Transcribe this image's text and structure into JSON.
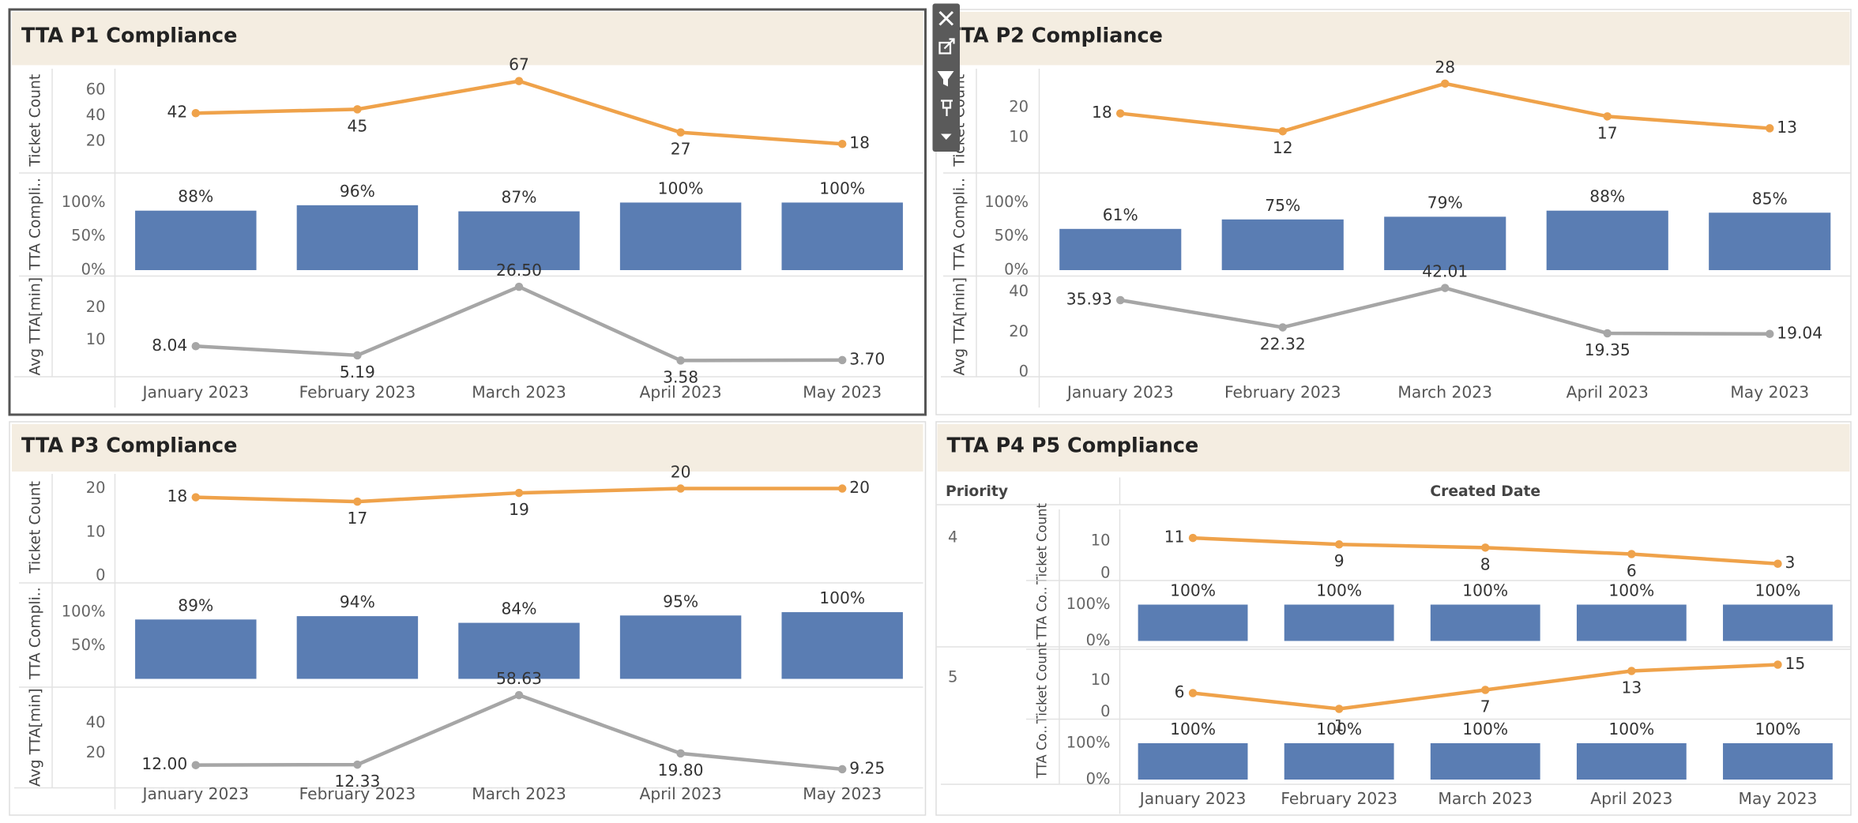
{
  "chart_data": [
    {
      "type": "combo",
      "title": "TTA P1 Compliance",
      "categories": [
        "January 2023",
        "February 2023",
        "March 2023",
        "April 2023",
        "May 2023"
      ],
      "panes": [
        {
          "type": "line",
          "y_label": "Ticket Count",
          "color": "#efa24a",
          "values": [
            42,
            45,
            67,
            27,
            18
          ],
          "ylim": [
            0,
            72
          ],
          "yticks": [
            20,
            40,
            60
          ]
        },
        {
          "type": "bar",
          "y_label": "TTA Compli..",
          "color": "#5a7db3",
          "values": [
            88,
            96,
            87,
            100,
            100
          ],
          "value_labels": [
            "88%",
            "96%",
            "87%",
            "100%",
            "100%"
          ],
          "ylim": [
            0,
            135
          ],
          "yticks": [
            {
              "value": 0,
              "label": "0%"
            },
            {
              "value": 50,
              "label": "50%"
            },
            {
              "value": 100,
              "label": "100%"
            }
          ]
        },
        {
          "type": "line",
          "y_label": "Avg TTA[min]",
          "color": "#a6a6a6",
          "values": [
            8.04,
            5.19,
            26.5,
            3.58,
            3.7
          ],
          "value_labels": [
            "8.04",
            "5.19",
            "26.50",
            "3.58",
            "3.70"
          ],
          "ylim": [
            0,
            28
          ],
          "yticks": [
            10,
            20
          ]
        }
      ]
    },
    {
      "type": "combo",
      "title": "TTA P2 Compliance",
      "categories": [
        "January 2023",
        "February 2023",
        "March 2023",
        "April 2023",
        "May 2023"
      ],
      "panes": [
        {
          "type": "line",
          "y_label": "Ticket Count",
          "color": "#efa24a",
          "values": [
            18,
            12,
            28,
            17,
            13
          ],
          "ylim": [
            0,
            31
          ],
          "yticks": [
            10,
            20
          ]
        },
        {
          "type": "bar",
          "y_label": "TTA Compli..",
          "color": "#5a7db3",
          "values": [
            61,
            75,
            79,
            88,
            85
          ],
          "value_labels": [
            "61%",
            "75%",
            "79%",
            "88%",
            "85%"
          ],
          "ylim": [
            0,
            135
          ],
          "yticks": [
            {
              "value": 0,
              "label": "0%"
            },
            {
              "value": 50,
              "label": "50%"
            },
            {
              "value": 100,
              "label": "100%"
            }
          ]
        },
        {
          "type": "line",
          "y_label": "Avg TTA[min]",
          "color": "#a6a6a6",
          "values": [
            35.93,
            22.32,
            42.01,
            19.35,
            19.04
          ],
          "ylim": [
            0,
            45
          ],
          "yticks": [
            0,
            20,
            40
          ]
        }
      ]
    },
    {
      "type": "combo",
      "title": "TTA P3 Compliance",
      "categories": [
        "January 2023",
        "February 2023",
        "March 2023",
        "April 2023",
        "May 2023"
      ],
      "panes": [
        {
          "type": "line",
          "y_label": "Ticket Count",
          "color": "#efa24a",
          "values": [
            18,
            17,
            19,
            20,
            20
          ],
          "ylim": [
            0,
            22
          ],
          "yticks": [
            0,
            10,
            20
          ]
        },
        {
          "type": "bar",
          "y_label": "TTA Compli..",
          "color": "#5a7db3",
          "values": [
            89,
            94,
            84,
            95,
            100
          ],
          "value_labels": [
            "89%",
            "94%",
            "84%",
            "95%",
            "100%"
          ],
          "ylim": [
            0,
            135
          ],
          "yticks": [
            {
              "value": 50,
              "label": "50%"
            },
            {
              "value": 100,
              "label": "100%"
            }
          ]
        },
        {
          "type": "line",
          "y_label": "Avg TTA[min]",
          "color": "#a6a6a6",
          "values": [
            12,
            12.33,
            58.63,
            19.8,
            9.25
          ],
          "value_labels": [
            "12.00",
            "12.33",
            "58.63",
            "19.80",
            "9.25"
          ],
          "ylim": [
            0,
            60
          ],
          "yticks": [
            20,
            40
          ]
        }
      ]
    },
    {
      "type": "combo",
      "title": "TTA P4 P5 Compliance",
      "row_header": "Priority",
      "column_header": "Created Date",
      "categories": [
        "January 2023",
        "February 2023",
        "March 2023",
        "April 2023",
        "May 2023"
      ],
      "groups": [
        {
          "label": "4",
          "panes": [
            {
              "type": "line",
              "y_label": "Ticket Count",
              "color": "#efa24a",
              "values": [
                11,
                9,
                8,
                6,
                3
              ],
              "ylim": [
                0,
                18
              ],
              "yticks": [
                0,
                10
              ]
            },
            {
              "type": "bar",
              "y_label": "TTA Co..",
              "color": "#5a7db3",
              "values": [
                100,
                100,
                100,
                100,
                100
              ],
              "value_labels": [
                "100%",
                "100%",
                "100%",
                "100%",
                "100%"
              ],
              "ylim": [
                0,
                150
              ],
              "yticks": [
                {
                  "value": 0,
                  "label": "0%"
                },
                {
                  "value": 100,
                  "label": "100%"
                }
              ]
            }
          ]
        },
        {
          "label": "5",
          "panes": [
            {
              "type": "line",
              "y_label": "Ticket Count",
              "color": "#efa24a",
              "values": [
                6,
                1,
                7,
                13,
                15
              ],
              "ylim": [
                0,
                18
              ],
              "yticks": [
                0,
                10
              ]
            },
            {
              "type": "bar",
              "y_label": "TTA Co..",
              "color": "#5a7db3",
              "values": [
                100,
                100,
                100,
                100,
                100
              ],
              "value_labels": [
                "100%",
                "100%",
                "100%",
                "100%",
                "100%"
              ],
              "ylim": [
                0,
                150
              ],
              "yticks": [
                {
                  "value": 0,
                  "label": "0%"
                },
                {
                  "value": 100,
                  "label": "100%"
                }
              ]
            }
          ]
        }
      ]
    }
  ]
}
